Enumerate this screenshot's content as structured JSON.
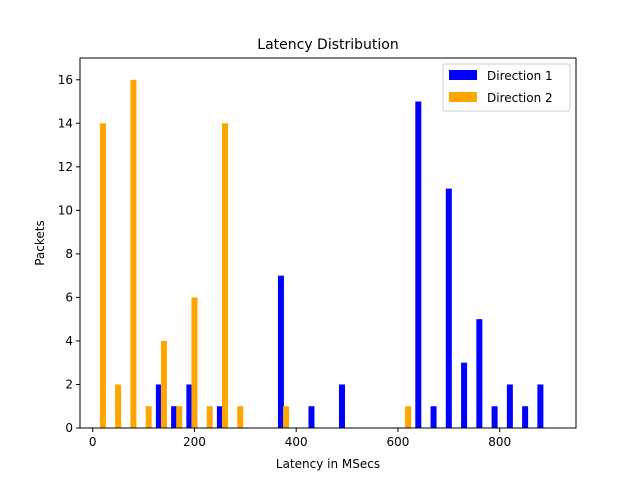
{
  "chart_data": {
    "type": "bar",
    "title": "Latency Distribution",
    "xlabel": "Latency in MSecs",
    "ylabel": "Packets",
    "xlim": [
      -25,
      950
    ],
    "ylim": [
      0,
      17
    ],
    "xticks": [
      0,
      200,
      400,
      600,
      800
    ],
    "yticks": [
      0,
      2,
      4,
      6,
      8,
      10,
      12,
      14,
      16
    ],
    "grid": false,
    "legend_position": "top-right",
    "series": [
      {
        "name": "Direction 1",
        "color": "#0000ff",
        "points": [
          {
            "x": 130,
            "y": 2
          },
          {
            "x": 160,
            "y": 1
          },
          {
            "x": 190,
            "y": 2
          },
          {
            "x": 250,
            "y": 1
          },
          {
            "x": 370,
            "y": 7
          },
          {
            "x": 430,
            "y": 1
          },
          {
            "x": 490,
            "y": 2
          },
          {
            "x": 640,
            "y": 15
          },
          {
            "x": 670,
            "y": 1
          },
          {
            "x": 700,
            "y": 11
          },
          {
            "x": 730,
            "y": 3
          },
          {
            "x": 760,
            "y": 5
          },
          {
            "x": 790,
            "y": 1
          },
          {
            "x": 820,
            "y": 2
          },
          {
            "x": 850,
            "y": 1
          },
          {
            "x": 880,
            "y": 2
          }
        ]
      },
      {
        "name": "Direction 2",
        "color": "#ffa500",
        "points": [
          {
            "x": 20,
            "y": 14
          },
          {
            "x": 50,
            "y": 2
          },
          {
            "x": 80,
            "y": 16
          },
          {
            "x": 110,
            "y": 1
          },
          {
            "x": 140,
            "y": 4
          },
          {
            "x": 170,
            "y": 1
          },
          {
            "x": 200,
            "y": 6
          },
          {
            "x": 230,
            "y": 1
          },
          {
            "x": 260,
            "y": 14
          },
          {
            "x": 290,
            "y": 1
          },
          {
            "x": 380,
            "y": 1
          },
          {
            "x": 620,
            "y": 1
          }
        ]
      }
    ]
  }
}
